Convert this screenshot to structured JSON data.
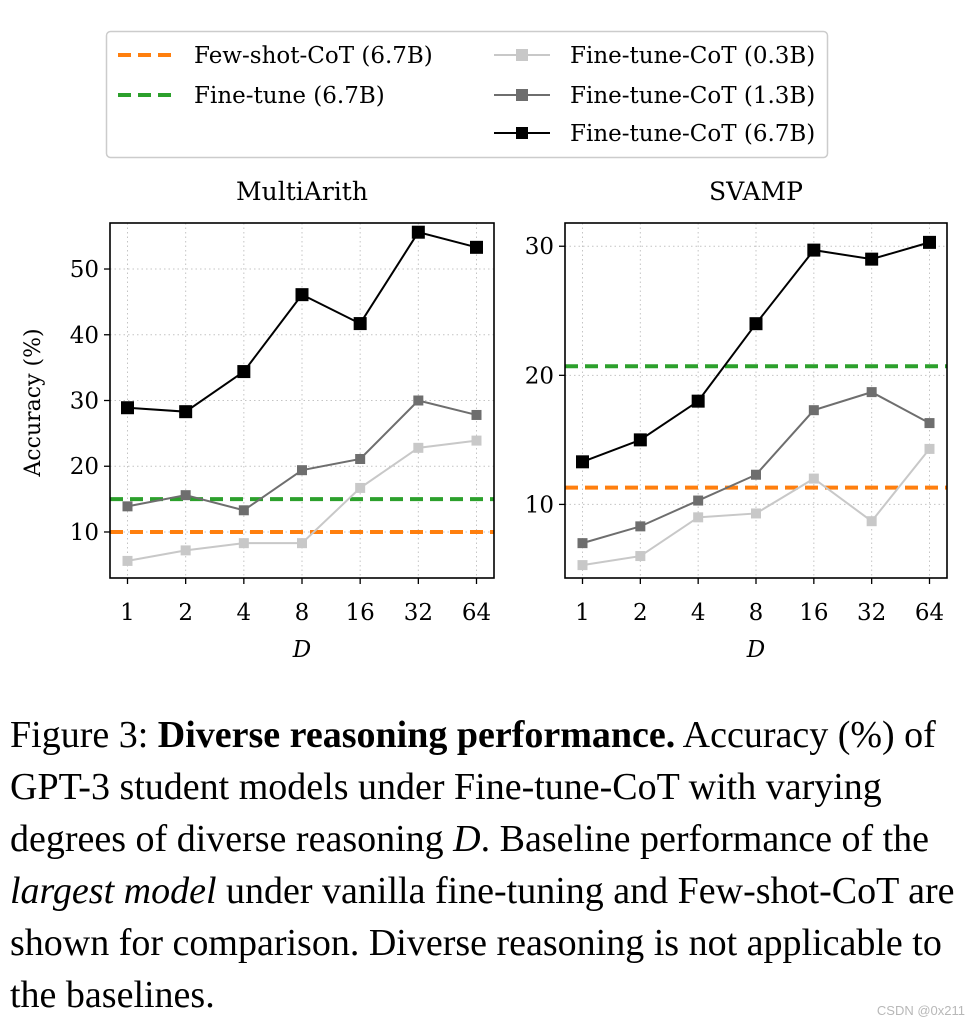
{
  "legend": {
    "items": [
      {
        "label": "Few-shot-CoT (6.7B)",
        "color": "#ff7f0e",
        "style": "dashed"
      },
      {
        "label": "Fine-tune (6.7B)",
        "color": "#2ca02c",
        "style": "dashed"
      },
      {
        "label": "Fine-tune-CoT (0.3B)",
        "color": "#c8c8c8",
        "style": "line-square"
      },
      {
        "label": "Fine-tune-CoT (1.3B)",
        "color": "#6e6e6e",
        "style": "line-square"
      },
      {
        "label": "Fine-tune-CoT (6.7B)",
        "color": "#000000",
        "style": "line-square"
      }
    ]
  },
  "chart_data": [
    {
      "type": "line",
      "title": "MultiArith",
      "xlabel": "D",
      "ylabel": "Accuracy (%)",
      "categories": [
        "1",
        "2",
        "4",
        "8",
        "16",
        "32",
        "64"
      ],
      "ylim": [
        3,
        57
      ],
      "yticks": [
        10,
        20,
        30,
        40,
        50
      ],
      "grid": true,
      "series": [
        {
          "name": "Fine-tune-CoT (0.3B)",
          "color": "#c8c8c8",
          "values": [
            5.6,
            7.2,
            8.3,
            8.3,
            16.7,
            22.8,
            23.9
          ]
        },
        {
          "name": "Fine-tune-CoT (1.3B)",
          "color": "#6e6e6e",
          "values": [
            13.9,
            15.6,
            13.3,
            19.4,
            21.1,
            30.0,
            27.8
          ]
        },
        {
          "name": "Fine-tune-CoT (6.7B)",
          "color": "#000000",
          "values": [
            28.9,
            28.3,
            34.4,
            46.1,
            41.7,
            55.6,
            53.3
          ]
        }
      ],
      "baselines": [
        {
          "name": "Few-shot-CoT (6.7B)",
          "color": "#ff7f0e",
          "value": 10.0
        },
        {
          "name": "Fine-tune (6.7B)",
          "color": "#2ca02c",
          "value": 15.0
        }
      ]
    },
    {
      "type": "line",
      "title": "SVAMP",
      "xlabel": "D",
      "ylabel": "",
      "categories": [
        "1",
        "2",
        "4",
        "8",
        "16",
        "32",
        "64"
      ],
      "ylim": [
        4.3,
        31.8
      ],
      "yticks": [
        10,
        20,
        30
      ],
      "grid": true,
      "series": [
        {
          "name": "Fine-tune-CoT (0.3B)",
          "color": "#c8c8c8",
          "values": [
            5.3,
            6.0,
            9.0,
            9.3,
            12.0,
            8.7,
            14.3
          ]
        },
        {
          "name": "Fine-tune-CoT (1.3B)",
          "color": "#6e6e6e",
          "values": [
            7.0,
            8.3,
            10.3,
            12.3,
            17.3,
            18.7,
            16.3
          ]
        },
        {
          "name": "Fine-tune-CoT (6.7B)",
          "color": "#000000",
          "values": [
            13.3,
            15.0,
            18.0,
            24.0,
            29.7,
            29.0,
            30.3
          ]
        }
      ],
      "baselines": [
        {
          "name": "Few-shot-CoT (6.7B)",
          "color": "#ff7f0e",
          "value": 11.3
        },
        {
          "name": "Fine-tune (6.7B)",
          "color": "#2ca02c",
          "value": 20.7
        }
      ]
    }
  ],
  "caption": {
    "label": "Figure 3: ",
    "bold_title": "Diverse reasoning performance.",
    "text_1": " Accuracy (%) of GPT-3 student models under Fine-tune-CoT with varying degrees of diverse reasoning ",
    "var_d": "D",
    "text_2": ". Baseline performance of the ",
    "italic_phrase": "largest model",
    "text_3": " under vanilla fine-tuning and Few-shot-CoT are shown for comparison. Diverse reasoning is not applicable to the baselines."
  },
  "watermark": "CSDN @0x211"
}
